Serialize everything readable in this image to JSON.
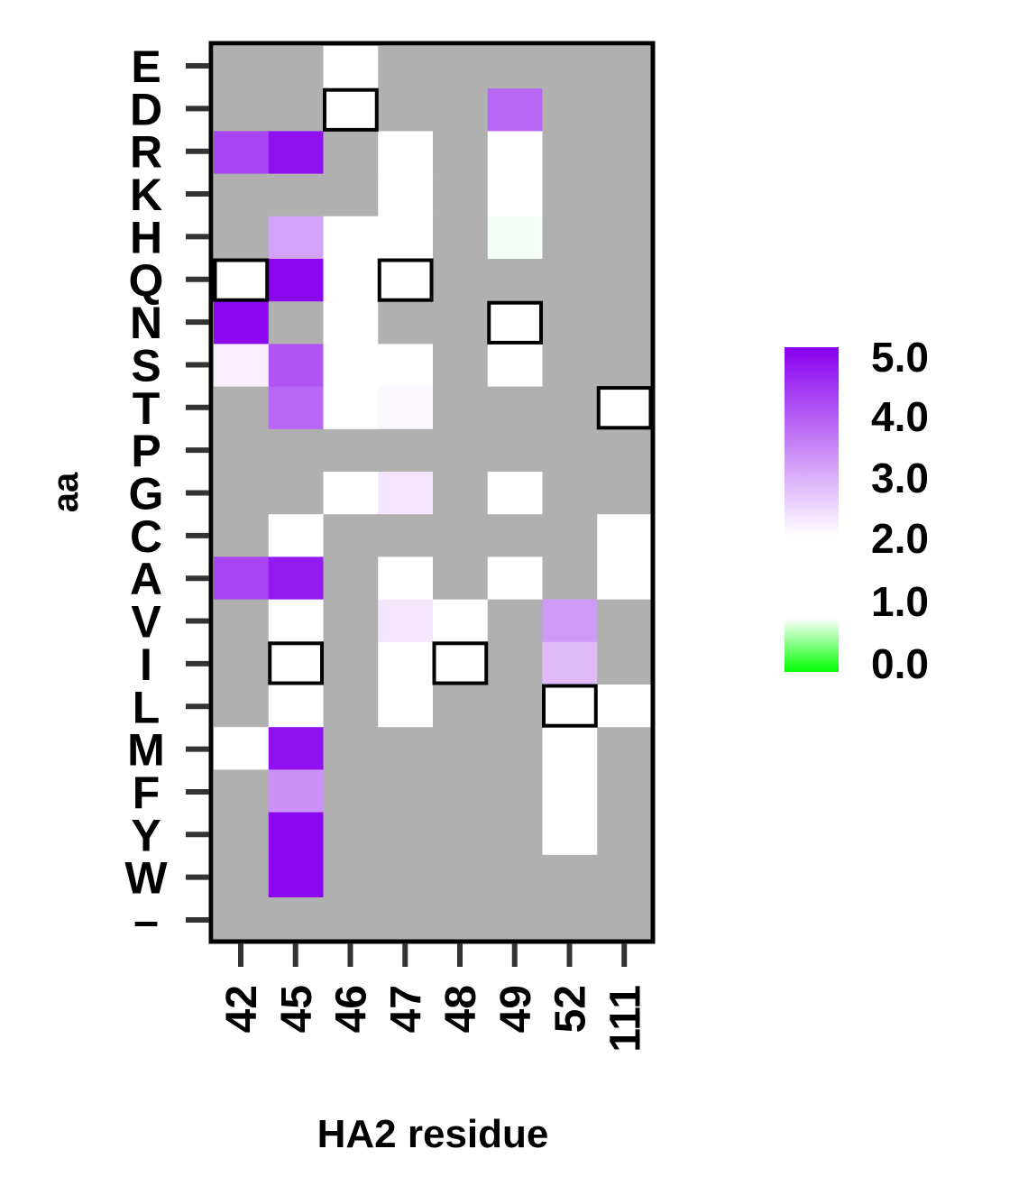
{
  "chart_data": {
    "type": "heatmap",
    "xlabel": "HA2 residue",
    "ylabel": "aa",
    "x_categories": [
      "42",
      "45",
      "46",
      "47",
      "48",
      "49",
      "52",
      "111"
    ],
    "y_categories": [
      "E",
      "D",
      "R",
      "K",
      "H",
      "Q",
      "N",
      "S",
      "T",
      "P",
      "G",
      "C",
      "A",
      "V",
      "I",
      "L",
      "M",
      "F",
      "Y",
      "W",
      "–"
    ],
    "missing_color": "#b0b0b0",
    "values": [
      [
        null,
        null,
        2.0,
        null,
        null,
        null,
        null,
        null
      ],
      [
        null,
        null,
        2.0,
        null,
        null,
        3.8,
        null,
        null
      ],
      [
        4.2,
        4.8,
        null,
        2.0,
        null,
        2.0,
        null,
        null
      ],
      [
        null,
        null,
        null,
        2.0,
        null,
        2.0,
        null,
        null
      ],
      [
        null,
        3.1,
        2.0,
        2.0,
        null,
        1.9,
        null,
        null
      ],
      [
        2.0,
        4.9,
        2.0,
        2.0,
        null,
        null,
        null,
        null
      ],
      [
        4.9,
        null,
        2.0,
        null,
        null,
        2.0,
        null,
        null
      ],
      [
        2.2,
        4.0,
        2.0,
        2.0,
        null,
        2.0,
        null,
        null
      ],
      [
        null,
        3.8,
        2.0,
        2.1,
        null,
        null,
        null,
        2.0
      ],
      [
        null,
        null,
        null,
        null,
        null,
        null,
        null,
        null
      ],
      [
        null,
        null,
        2.0,
        2.3,
        null,
        2.0,
        null,
        null
      ],
      [
        null,
        2.0,
        null,
        null,
        null,
        null,
        null,
        2.0
      ],
      [
        4.2,
        4.7,
        null,
        2.0,
        null,
        2.0,
        null,
        2.0
      ],
      [
        null,
        2.0,
        null,
        2.3,
        2.0,
        null,
        3.2,
        null
      ],
      [
        null,
        2.0,
        null,
        2.0,
        2.0,
        null,
        2.8,
        null
      ],
      [
        null,
        2.0,
        null,
        2.0,
        null,
        null,
        2.0,
        2.0
      ],
      [
        2.0,
        4.8,
        null,
        null,
        null,
        null,
        2.0,
        null
      ],
      [
        null,
        3.3,
        null,
        null,
        null,
        null,
        2.0,
        null
      ],
      [
        null,
        4.9,
        null,
        null,
        null,
        null,
        2.0,
        null
      ],
      [
        null,
        4.9,
        null,
        null,
        null,
        null,
        null,
        null
      ],
      [
        null,
        null,
        null,
        null,
        null,
        null,
        null,
        null
      ]
    ],
    "wildtype_boxes": [
      {
        "x": "46",
        "y": "D"
      },
      {
        "x": "42",
        "y": "Q"
      },
      {
        "x": "47",
        "y": "Q"
      },
      {
        "x": "49",
        "y": "N"
      },
      {
        "x": "111",
        "y": "T"
      },
      {
        "x": "45",
        "y": "I"
      },
      {
        "x": "48",
        "y": "I"
      },
      {
        "x": "52",
        "y": "L"
      }
    ],
    "colorbar": {
      "ticks": [
        "5.0",
        "4.0",
        "3.0",
        "2.0",
        "1.0",
        "0.0"
      ],
      "low_color": "#00ff00",
      "mid_color": "#ffffff",
      "high_color": "#8800ee",
      "min": 0.0,
      "mid": 2.0,
      "max": 5.0
    }
  }
}
